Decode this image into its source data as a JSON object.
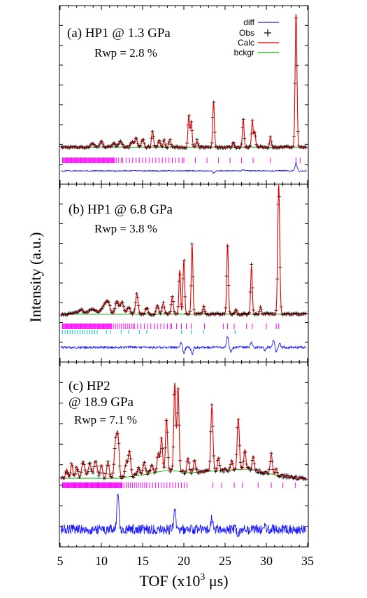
{
  "figure": {
    "ylabel": "Intensity (a.u.)",
    "xlabel_prefix": "TOF (x10",
    "xlabel_sup": "3",
    "xlabel_suffix": " μs)"
  },
  "chart_data": [
    {
      "type": "line",
      "label": "(a) HP1 @ 1.3 GPa",
      "rwp": "Rwp = 2.8 %",
      "xlim": [
        5,
        35
      ],
      "background": 0.02,
      "noise_level": 0.014,
      "legend": {
        "position": "top-right",
        "entries": [
          {
            "label": "diff",
            "color": "#1a1aff",
            "symbol": "line"
          },
          {
            "label": "Obs",
            "color": "#000000",
            "symbol": "plus"
          },
          {
            "label": "Calc",
            "color": "#e00000",
            "symbol": "line"
          },
          {
            "label": "bckgr",
            "color": "#00b400",
            "symbol": "line"
          }
        ]
      },
      "peaks": [
        [
          8.9,
          0.03,
          0.2
        ],
        [
          10.0,
          0.04,
          0.2
        ],
        [
          11.5,
          0.035,
          0.18
        ],
        [
          12.3,
          0.04,
          0.2
        ],
        [
          13.7,
          0.04,
          0.15
        ],
        [
          14.2,
          0.07,
          0.15
        ],
        [
          15.0,
          0.06,
          0.15
        ],
        [
          16.2,
          0.12,
          0.12
        ],
        [
          17.0,
          0.05,
          0.12
        ],
        [
          17.6,
          0.05,
          0.12
        ],
        [
          18.3,
          0.06,
          0.12
        ],
        [
          20.6,
          0.24,
          0.1
        ],
        [
          20.9,
          0.19,
          0.1
        ],
        [
          21.6,
          0.05,
          0.1
        ],
        [
          23.6,
          0.34,
          0.1
        ],
        [
          26.0,
          0.04,
          0.1
        ],
        [
          27.2,
          0.21,
          0.1
        ],
        [
          28.3,
          0.2,
          0.1
        ],
        [
          28.6,
          0.12,
          0.1
        ],
        [
          30.5,
          0.08,
          0.1
        ],
        [
          33.6,
          1.0,
          0.11
        ]
      ],
      "ticks": [
        [
          5.3,
          11.6,
          0.1
        ],
        [
          11.8,
          12.6,
          0.3
        ],
        [
          12.6,
          20.0,
          0.4
        ],
        [
          20.0,
          29.5,
          1.4
        ],
        [
          30.5,
          30.5,
          1
        ],
        [
          33.6,
          33.6,
          1
        ],
        [
          34.1,
          34.1,
          1
        ]
      ],
      "cyan_ticks": [],
      "diff_features": [
        [
          23.6,
          -0.3
        ],
        [
          27.2,
          0.2
        ],
        [
          33.6,
          1.0
        ]
      ],
      "diff_noise": 0.12
    },
    {
      "type": "line",
      "label": "(b) HP1 @ 6.8 GPa",
      "rwp": "Rwp = 3.8 %",
      "xlim": [
        5,
        35
      ],
      "background": 0.05,
      "noise_level": 0.015,
      "peaks": [
        [
          7.5,
          0.03,
          0.4
        ],
        [
          9.0,
          0.04,
          0.4
        ],
        [
          10.3,
          0.06,
          0.3
        ],
        [
          10.8,
          0.08,
          0.25
        ],
        [
          11.9,
          0.1,
          0.2
        ],
        [
          12.5,
          0.09,
          0.2
        ],
        [
          13.3,
          0.05,
          0.2
        ],
        [
          14.3,
          0.15,
          0.15
        ],
        [
          15.5,
          0.05,
          0.15
        ],
        [
          16.8,
          0.06,
          0.15
        ],
        [
          17.5,
          0.08,
          0.15
        ],
        [
          18.6,
          0.13,
          0.12
        ],
        [
          19.5,
          0.33,
          0.1
        ],
        [
          20.0,
          0.41,
          0.1
        ],
        [
          21.0,
          0.52,
          0.1
        ],
        [
          22.4,
          0.06,
          0.1
        ],
        [
          25.3,
          0.53,
          0.1
        ],
        [
          26.3,
          0.04,
          0.1
        ],
        [
          28.2,
          0.36,
          0.1
        ],
        [
          29.3,
          0.05,
          0.1
        ],
        [
          31.5,
          0.97,
          0.12
        ]
      ],
      "ticks": [
        [
          5.3,
          11.2,
          0.1
        ],
        [
          11.2,
          14.0,
          0.25
        ],
        [
          14.0,
          18.5,
          0.4
        ],
        [
          18.5,
          21.0,
          0.6
        ],
        [
          22.5,
          22.5,
          1
        ],
        [
          24.8,
          24.8,
          1
        ],
        [
          25.3,
          25.3,
          1
        ],
        [
          26.1,
          26.1,
          1
        ],
        [
          27.6,
          27.6,
          1
        ],
        [
          28.3,
          28.3,
          1
        ],
        [
          30.0,
          30.0,
          1
        ],
        [
          31.2,
          31.2,
          1
        ],
        [
          31.5,
          31.5,
          1
        ]
      ],
      "cyan_ticks": [
        [
          5.3,
          9.6,
          0.3
        ],
        [
          10.6,
          10.6,
          1
        ],
        [
          11.1,
          11.1,
          1
        ],
        [
          12.4,
          12.4,
          1
        ],
        [
          13.3,
          13.3,
          1
        ],
        [
          14.6,
          14.6,
          1
        ],
        [
          15.5,
          15.5,
          1
        ],
        [
          19.7,
          19.7,
          1
        ],
        [
          20.9,
          20.9,
          1
        ],
        [
          22.4,
          22.4,
          1
        ],
        [
          26.2,
          26.2,
          1
        ]
      ],
      "diff_features": [
        [
          19.7,
          0.35
        ],
        [
          20.0,
          -0.4
        ],
        [
          21.0,
          -0.45
        ],
        [
          25.3,
          0.7
        ],
        [
          25.7,
          -0.3
        ],
        [
          28.2,
          0.35
        ],
        [
          29.8,
          -0.2
        ],
        [
          30.9,
          0.45
        ],
        [
          31.2,
          -0.3
        ],
        [
          31.6,
          0.25
        ]
      ],
      "diff_noise": 0.15
    },
    {
      "type": "line",
      "label_line1": "(c) HP2",
      "label_line2": "@ 18.9 GPa",
      "rwp": "Rwp = 7.1 %",
      "xlim": [
        5,
        35
      ],
      "background_points": [
        [
          5,
          0.03
        ],
        [
          12,
          0.03
        ],
        [
          15,
          0.06
        ],
        [
          18,
          0.1
        ],
        [
          21,
          0.08
        ],
        [
          25,
          0.1
        ],
        [
          28,
          0.11
        ],
        [
          31,
          0.06
        ],
        [
          35,
          0.02
        ]
      ],
      "noise_level": 0.03,
      "peaks": [
        [
          5.8,
          0.08,
          0.12
        ],
        [
          6.4,
          0.13,
          0.12
        ],
        [
          7.0,
          0.1,
          0.15
        ],
        [
          7.8,
          0.14,
          0.2
        ],
        [
          8.6,
          0.12,
          0.2
        ],
        [
          9.3,
          0.15,
          0.2
        ],
        [
          10.0,
          0.11,
          0.15
        ],
        [
          10.8,
          0.14,
          0.15
        ],
        [
          11.7,
          0.28,
          0.15
        ],
        [
          12.0,
          0.36,
          0.15
        ],
        [
          13.0,
          0.12,
          0.15
        ],
        [
          13.4,
          0.22,
          0.15
        ],
        [
          14.5,
          0.07,
          0.15
        ],
        [
          15.2,
          0.1,
          0.15
        ],
        [
          16.1,
          0.07,
          0.15
        ],
        [
          16.9,
          0.15,
          0.15
        ],
        [
          17.3,
          0.28,
          0.12
        ],
        [
          17.9,
          0.45,
          0.12
        ],
        [
          18.9,
          0.76,
          0.12
        ],
        [
          19.3,
          0.72,
          0.12
        ],
        [
          20.5,
          0.12,
          0.12
        ],
        [
          21.3,
          0.1,
          0.12
        ],
        [
          23.4,
          0.56,
          0.13
        ],
        [
          24.2,
          0.11,
          0.12
        ],
        [
          25.8,
          0.08,
          0.12
        ],
        [
          26.6,
          0.44,
          0.13
        ],
        [
          27.4,
          0.17,
          0.12
        ],
        [
          28.4,
          0.12,
          0.12
        ],
        [
          30.6,
          0.17,
          0.13
        ],
        [
          31.2,
          0.05,
          0.12
        ]
      ],
      "ticks": [
        [
          5.3,
          12.5,
          0.09
        ],
        [
          12.5,
          15.5,
          0.25
        ],
        [
          15.5,
          20.5,
          0.35
        ],
        [
          23.5,
          23.5,
          1
        ],
        [
          24.6,
          24.6,
          1
        ],
        [
          26.1,
          26.1,
          1
        ],
        [
          27.1,
          27.1,
          1
        ],
        [
          29.0,
          29.0,
          1
        ],
        [
          30.6,
          30.6,
          1
        ],
        [
          32.0,
          32.0,
          1
        ],
        [
          33.5,
          33.5,
          1
        ]
      ],
      "cyan_ticks": [],
      "diff_features": [
        [
          12.0,
          1.0
        ],
        [
          18.9,
          0.55
        ],
        [
          23.4,
          0.3
        ],
        [
          26.6,
          -0.2
        ],
        [
          29.7,
          0.15
        ]
      ],
      "diff_noise": 0.28
    }
  ],
  "x_tick_labels": [
    "5",
    "10",
    "15",
    "20",
    "25",
    "30",
    "35"
  ]
}
